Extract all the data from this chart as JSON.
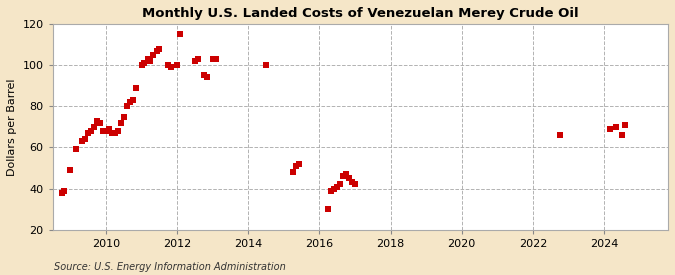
{
  "title": "Monthly U.S. Landed Costs of Venezuelan Merey Crude Oil",
  "ylabel": "Dollars per Barrel",
  "source": "Source: U.S. Energy Information Administration",
  "outer_bg": "#f5e6c8",
  "plot_bg": "#ffffff",
  "marker_color": "#cc0000",
  "marker_size": 18,
  "ylim": [
    20,
    120
  ],
  "yticks": [
    20,
    40,
    60,
    80,
    100,
    120
  ],
  "xlim": [
    2008.5,
    2025.8
  ],
  "xticks": [
    2010,
    2012,
    2014,
    2016,
    2018,
    2020,
    2022,
    2024
  ],
  "data_points": [
    [
      2008.75,
      38
    ],
    [
      2008.83,
      39
    ],
    [
      2009.0,
      49
    ],
    [
      2009.17,
      59
    ],
    [
      2009.33,
      63
    ],
    [
      2009.42,
      64
    ],
    [
      2009.5,
      67
    ],
    [
      2009.58,
      68
    ],
    [
      2009.67,
      70
    ],
    [
      2009.75,
      73
    ],
    [
      2009.83,
      72
    ],
    [
      2009.92,
      68
    ],
    [
      2010.0,
      68
    ],
    [
      2010.08,
      69
    ],
    [
      2010.17,
      67
    ],
    [
      2010.25,
      67
    ],
    [
      2010.33,
      68
    ],
    [
      2010.42,
      72
    ],
    [
      2010.5,
      75
    ],
    [
      2010.58,
      80
    ],
    [
      2010.67,
      82
    ],
    [
      2010.75,
      83
    ],
    [
      2010.83,
      89
    ],
    [
      2011.0,
      100
    ],
    [
      2011.08,
      101
    ],
    [
      2011.17,
      103
    ],
    [
      2011.25,
      102
    ],
    [
      2011.33,
      105
    ],
    [
      2011.42,
      107
    ],
    [
      2011.5,
      108
    ],
    [
      2011.75,
      100
    ],
    [
      2011.83,
      99
    ],
    [
      2012.0,
      100
    ],
    [
      2012.08,
      115
    ],
    [
      2012.5,
      102
    ],
    [
      2012.58,
      103
    ],
    [
      2012.75,
      95
    ],
    [
      2012.83,
      94
    ],
    [
      2013.0,
      103
    ],
    [
      2013.08,
      103
    ],
    [
      2014.5,
      100
    ],
    [
      2015.25,
      48
    ],
    [
      2015.33,
      51
    ],
    [
      2015.42,
      52
    ],
    [
      2016.25,
      30
    ],
    [
      2016.33,
      39
    ],
    [
      2016.42,
      40
    ],
    [
      2016.5,
      41
    ],
    [
      2016.58,
      42
    ],
    [
      2016.67,
      46
    ],
    [
      2016.75,
      47
    ],
    [
      2016.83,
      45
    ],
    [
      2016.92,
      43
    ],
    [
      2017.0,
      42
    ],
    [
      2022.75,
      66
    ],
    [
      2024.17,
      69
    ],
    [
      2024.33,
      70
    ],
    [
      2024.5,
      66
    ],
    [
      2024.58,
      71
    ]
  ]
}
